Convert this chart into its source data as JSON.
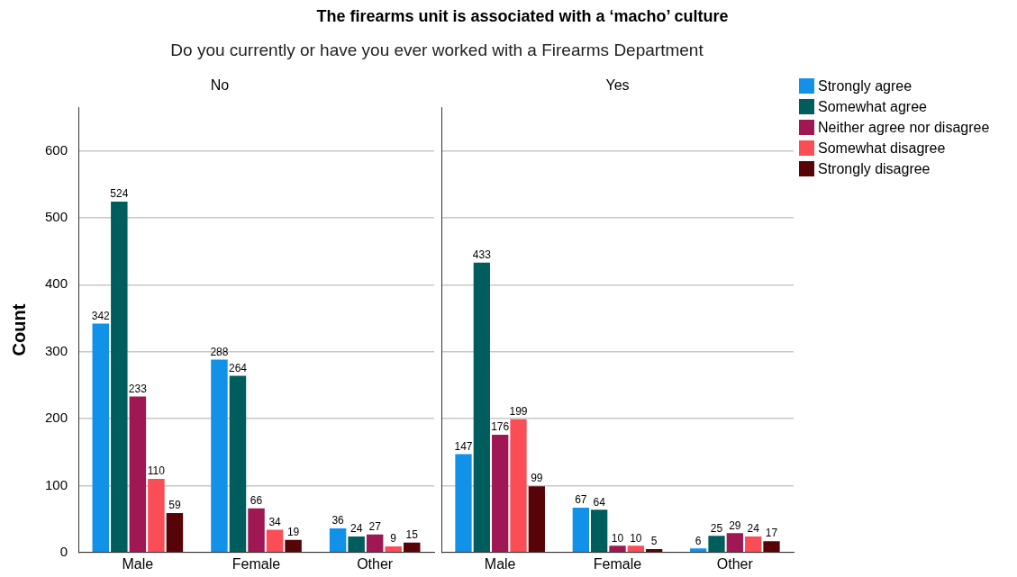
{
  "chart_data": [
    {
      "type": "bar",
      "title": "No",
      "ylabel": "Count",
      "annotations": [
        "The firearms unit is associated with a ‘macho’ culture",
        "Do you currently or have you ever worked with a Firearms Department"
      ],
      "categories": [
        "Male",
        "Female",
        "Other"
      ],
      "series": [
        {
          "color": "#1192e8",
          "values": [
            342,
            288,
            36
          ]
        },
        {
          "color": "#005d5d",
          "values": [
            524,
            264,
            24
          ]
        },
        {
          "color": "#9f1853",
          "values": [
            233,
            66,
            27
          ]
        },
        {
          "color": "#fa4d56",
          "values": [
            110,
            34,
            9
          ]
        },
        {
          "color": "#570408",
          "values": [
            59,
            19,
            15
          ]
        }
      ],
      "ylim": [
        0,
        665
      ],
      "yticks": [
        0,
        100,
        200,
        300,
        400,
        500,
        600
      ],
      "grid": "y",
      "data_labels": true
    },
    {
      "type": "bar",
      "title": "Yes",
      "categories": [
        "Male",
        "Female",
        "Other"
      ],
      "series": [
        {
          "name": "Strongly agree",
          "color": "#1192e8",
          "values": [
            147,
            67,
            6
          ]
        },
        {
          "name": "Somewhat agree",
          "color": "#005d5d",
          "values": [
            433,
            64,
            25
          ]
        },
        {
          "name": "Neither agree nor disagree",
          "color": "#9f1853",
          "values": [
            176,
            10,
            29
          ]
        },
        {
          "name": "Somewhat disagree",
          "color": "#fa4d56",
          "values": [
            199,
            10,
            24
          ]
        },
        {
          "name": "Strongly disagree",
          "color": "#570408",
          "values": [
            99,
            5,
            17
          ]
        }
      ],
      "ylim": [
        0,
        665
      ],
      "yticks": [
        0,
        100,
        200,
        300,
        400,
        500,
        600
      ],
      "grid": "y",
      "tick_labels": "x",
      "data_labels": true,
      "legend": "right"
    }
  ]
}
